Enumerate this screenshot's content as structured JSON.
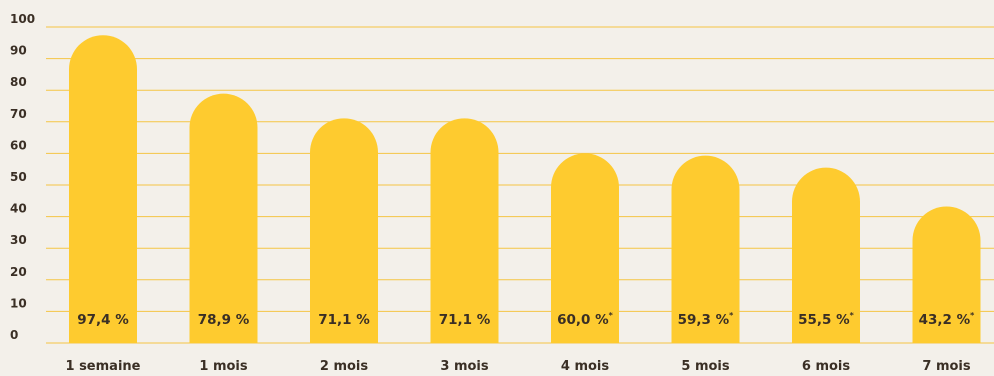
{
  "chart_data": {
    "type": "bar",
    "categories": [
      "1 semaine",
      "1 mois",
      "2 mois",
      "3 mois",
      "4 mois",
      "5 mois",
      "6 mois",
      "7 mois"
    ],
    "values": [
      97.4,
      78.9,
      71.1,
      71.1,
      60.0,
      59.3,
      55.5,
      43.2
    ],
    "value_labels": [
      "97,4 %",
      "78,9 %",
      "71,1 %",
      "71,1 %",
      "60,0 %",
      "59,3 %",
      "55,5 %",
      "43,2 %"
    ],
    "value_label_notes": [
      "",
      "",
      "",
      "",
      "*",
      "*",
      "*",
      "*"
    ],
    "y_ticks": [
      0,
      10,
      20,
      30,
      40,
      50,
      60,
      70,
      80,
      90,
      100
    ],
    "ylim": [
      0,
      100
    ],
    "grid": true,
    "title": "",
    "xlabel": "",
    "ylabel": "",
    "colors": {
      "bar": "#fecb2f",
      "grid": "#f5c544",
      "text": "#3a2f25",
      "background": "#f3f0ea"
    }
  }
}
